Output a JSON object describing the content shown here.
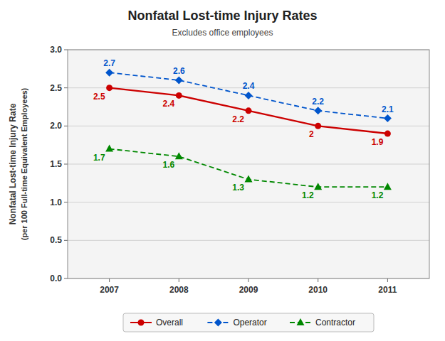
{
  "chart_data": {
    "type": "line",
    "title": "Nonfatal Lost-time Injury Rates",
    "subtitle": "Excludes office employees",
    "y_label": [
      "Nonfatal Lost-time Injury Rate",
      "(per 100 Full-time Equivalent Employees)"
    ],
    "x": [
      2007,
      2008,
      2009,
      2010,
      2011
    ],
    "xlim": [
      2006.4,
      2011.6
    ],
    "xticks": [
      2007,
      2008,
      2009,
      2010,
      2011
    ],
    "ylim": [
      0.0,
      3.0
    ],
    "yticks": [
      {
        "value": 0.0,
        "label": "0.0"
      },
      0.5,
      {
        "value": 1.0,
        "label": "1.0"
      },
      1.5,
      {
        "value": 2.0,
        "label": "2.0"
      },
      2.5,
      {
        "value": 3.0,
        "label": "3.0"
      }
    ],
    "grid": true,
    "legend": "bottom",
    "data_labels": true,
    "series": [
      {
        "name": "Overall",
        "color": "#cc0000",
        "marker": "circle",
        "line_style": "solid",
        "values": [
          2.5,
          2.4,
          2.2,
          2.0,
          1.9
        ]
      },
      {
        "name": "Operator",
        "color": "#0055cc",
        "marker": "diamond",
        "line_style": "dashed",
        "values": [
          2.7,
          2.6,
          2.4,
          2.2,
          2.1
        ]
      },
      {
        "name": "Contractor",
        "color": "#008800",
        "marker": "triangle",
        "line_style": "dashed",
        "values": [
          1.7,
          1.6,
          1.3,
          1.2,
          1.2
        ]
      }
    ]
  }
}
